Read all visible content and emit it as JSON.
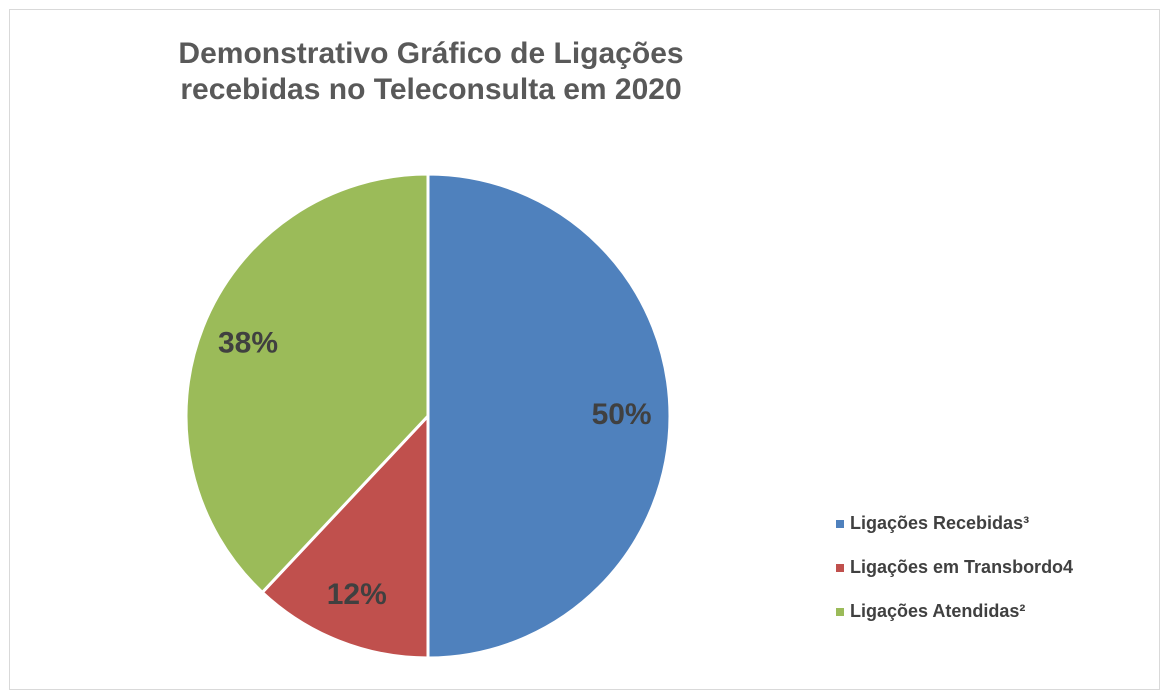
{
  "chart_data": {
    "type": "pie",
    "title": "Demonstrativo Gráfico de Ligações recebidas no Teleconsulta em 2020",
    "categories": [
      "Ligações Recebidas³",
      "Ligações em Transbordo4",
      "Ligações Atendidas²"
    ],
    "values": [
      50,
      12,
      38
    ],
    "value_labels": [
      "50%",
      "12%",
      "38%"
    ],
    "colors": [
      "#4f81bd",
      "#c0504d",
      "#9bbb59"
    ],
    "legend": "right"
  }
}
